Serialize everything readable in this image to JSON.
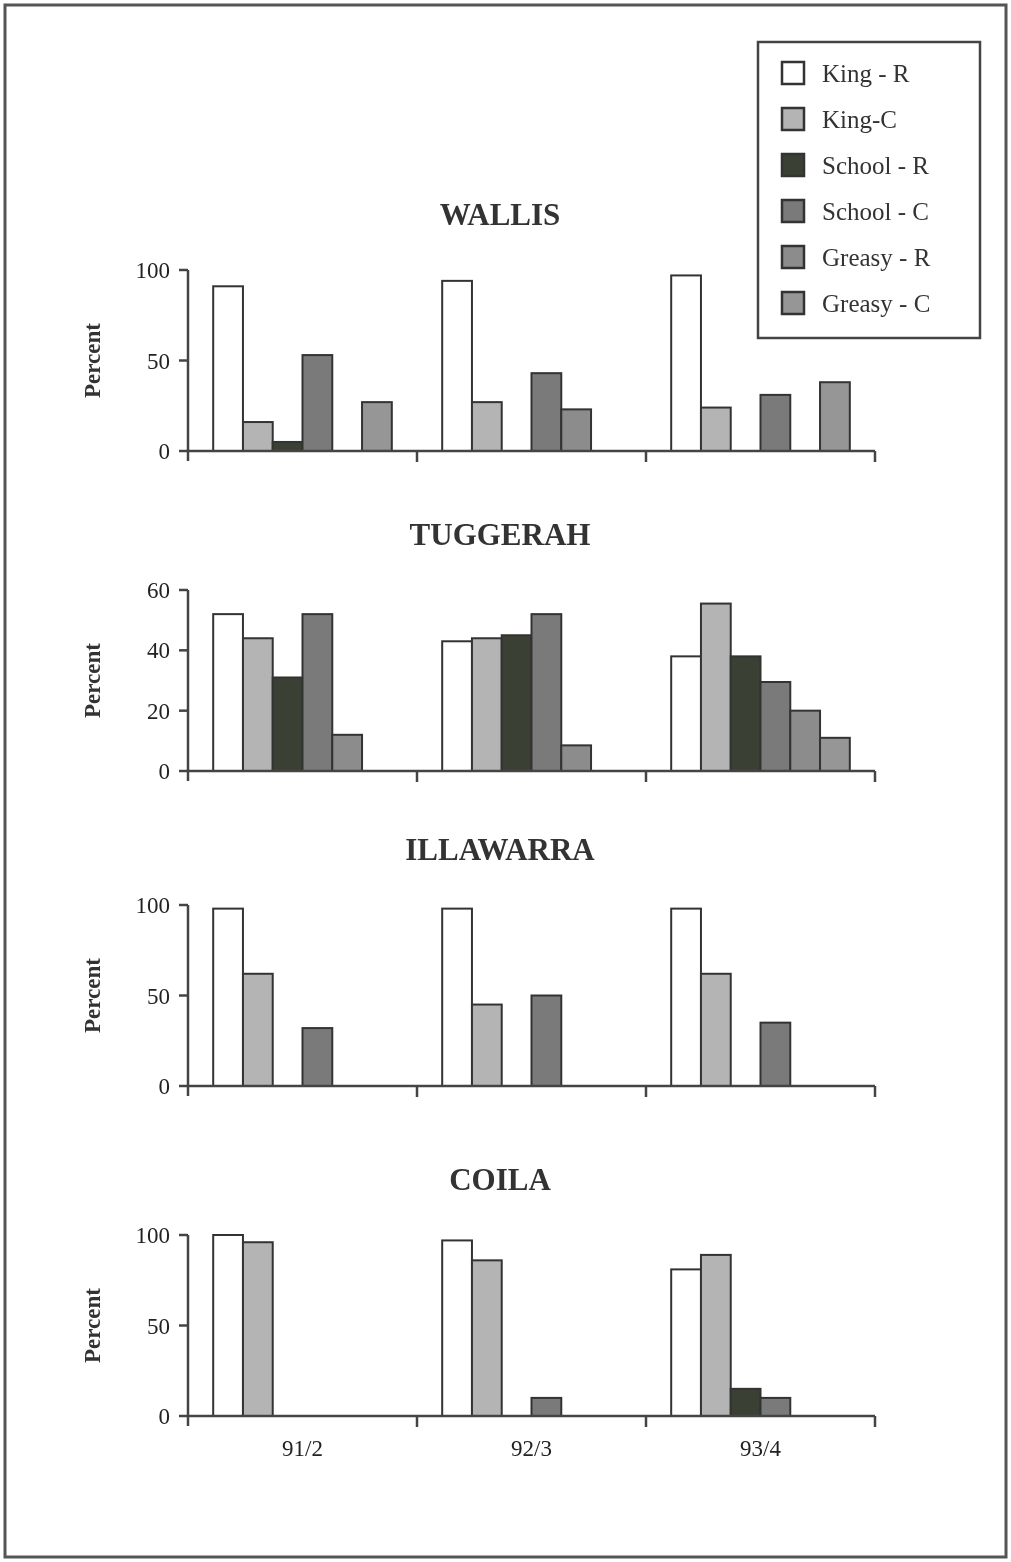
{
  "chart_data": [
    {
      "type": "bar",
      "title": "WALLIS",
      "ylabel": "Percent",
      "categories": [
        null,
        null,
        null
      ],
      "ylim": [
        0,
        100
      ],
      "yticks": [
        0,
        50,
        100
      ],
      "tick_labels": "y",
      "legend": "top right",
      "series": [
        {
          "name": "King - R",
          "color": "#ffffff",
          "values": [
            91,
            94,
            97
          ]
        },
        {
          "name": "King-C",
          "color": "#b4b4b4",
          "values": [
            16,
            27,
            24
          ]
        },
        {
          "name": "School - R",
          "color": "#3b4035",
          "values": [
            5,
            0,
            0
          ]
        },
        {
          "name": "School - C",
          "color": "#7a7a7a",
          "values": [
            53,
            43,
            31
          ]
        },
        {
          "name": "Greasy - R",
          "color": "#8c8c8c",
          "values": [
            0,
            23,
            0
          ]
        },
        {
          "name": "Greasy - C",
          "color": "#969696",
          "values": [
            27,
            0,
            38
          ]
        }
      ]
    },
    {
      "type": "bar",
      "title": "TUGGERAH",
      "ylabel": "Percent",
      "categories": [
        null,
        null,
        null
      ],
      "ylim": [
        0,
        60
      ],
      "yticks": [
        0,
        20,
        40,
        60
      ],
      "tick_labels": "y",
      "series": [
        {
          "color": "#ffffff",
          "values": [
            52,
            43,
            38
          ]
        },
        {
          "color": "#b4b4b4",
          "values": [
            44,
            44,
            55.5
          ]
        },
        {
          "color": "#3b4035",
          "values": [
            31,
            45,
            38
          ]
        },
        {
          "color": "#7a7a7a",
          "values": [
            52,
            52,
            29.5
          ]
        },
        {
          "color": "#8c8c8c",
          "values": [
            12,
            8.5,
            20
          ]
        },
        {
          "color": "#969696",
          "values": [
            0,
            0,
            11
          ]
        }
      ]
    },
    {
      "type": "bar",
      "title": "ILLAWARRA",
      "ylabel": "Percent",
      "categories": [
        null,
        null,
        null
      ],
      "ylim": [
        0,
        100
      ],
      "yticks": [
        0,
        50,
        100
      ],
      "tick_labels": "y",
      "series": [
        {
          "color": "#ffffff",
          "values": [
            98,
            98,
            98
          ]
        },
        {
          "color": "#b4b4b4",
          "values": [
            62,
            45,
            62
          ]
        },
        {
          "color": "#3b4035",
          "values": [
            0,
            0,
            0
          ]
        },
        {
          "color": "#7a7a7a",
          "values": [
            32,
            50,
            35
          ]
        },
        {
          "color": "#8c8c8c",
          "values": [
            0,
            0,
            0
          ]
        },
        {
          "color": "#969696",
          "values": [
            0,
            0,
            0
          ]
        }
      ]
    },
    {
      "type": "bar",
      "title": "COILA",
      "ylabel": "Percent",
      "categories": [
        "91/2",
        "92/3",
        "93/4"
      ],
      "ylim": [
        0,
        100
      ],
      "yticks": [
        0,
        50,
        100
      ],
      "series": [
        {
          "color": "#ffffff",
          "values": [
            100,
            97,
            81
          ]
        },
        {
          "color": "#b4b4b4",
          "values": [
            96,
            86,
            89
          ]
        },
        {
          "color": "#3b4035",
          "values": [
            0,
            0,
            15
          ]
        },
        {
          "color": "#7a7a7a",
          "values": [
            0,
            10,
            10
          ]
        },
        {
          "color": "#8c8c8c",
          "values": [
            0,
            0,
            0
          ]
        },
        {
          "color": "#969696",
          "values": [
            0,
            0,
            0
          ]
        }
      ]
    }
  ]
}
